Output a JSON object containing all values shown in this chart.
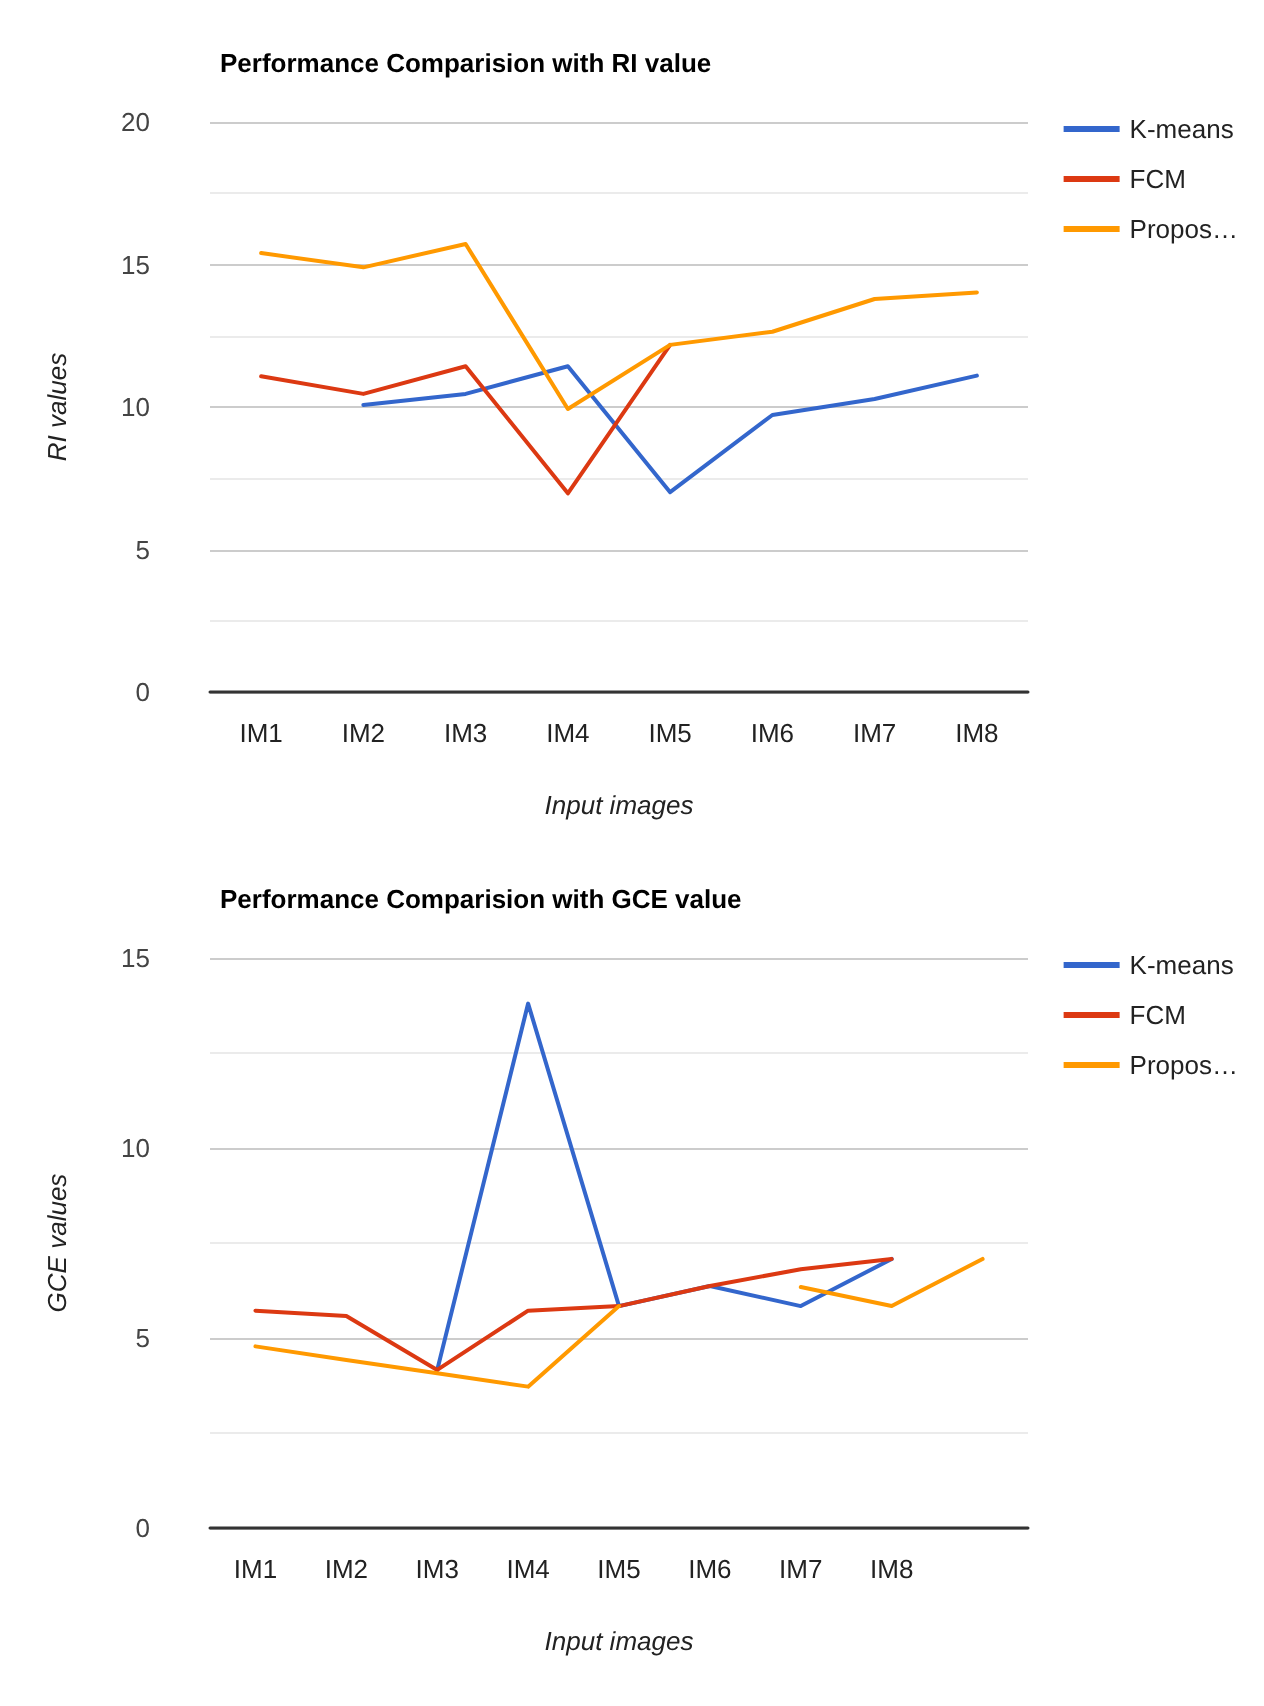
{
  "chart_data": [
    {
      "type": "line",
      "title": "Performance Comparision with RI value",
      "xlabel": "Input images",
      "ylabel": "RI values",
      "categories": [
        "IM1",
        "IM2",
        "IM3",
        "IM4",
        "IM5",
        "IM6",
        "IM7",
        "IM8"
      ],
      "ylim": [
        0,
        20
      ],
      "yticks": [
        0,
        5,
        10,
        15,
        20
      ],
      "grid": "y",
      "legend": "top right",
      "series": [
        {
          "name": "K-means",
          "color": "#3366cc",
          "values": [
            null,
            10.07,
            10.46,
            11.43,
            7.01,
            9.72,
            10.28,
            11.1
          ]
        },
        {
          "name": "FCM",
          "color": "#dc3912",
          "values": [
            11.08,
            10.46,
            11.43,
            6.97,
            12.18,
            null,
            null,
            null
          ]
        },
        {
          "name": "Propos…",
          "color": "#ff9900",
          "values": [
            15.4,
            14.9,
            15.72,
            9.93,
            12.18,
            12.64,
            13.79,
            14.02
          ]
        }
      ]
    },
    {
      "type": "line",
      "title": "Performance Comparision with GCE value",
      "xlabel": "Input images",
      "ylabel": "GCE values",
      "categories": [
        "IM1",
        "IM2",
        "IM3",
        "IM4",
        "IM5",
        "IM6",
        "IM7",
        "IM8",
        null
      ],
      "ylim": [
        0,
        15
      ],
      "yticks": [
        0,
        5,
        10,
        15
      ],
      "grid": "y",
      "legend": "top right",
      "series": [
        {
          "name": "K-means",
          "color": "#3366cc",
          "values": [
            null,
            null,
            4.16,
            13.8,
            5.84,
            6.37,
            5.84,
            7.08,
            null
          ]
        },
        {
          "name": "FCM",
          "color": "#dc3912",
          "values": [
            5.72,
            5.58,
            4.16,
            5.72,
            5.84,
            6.37,
            6.81,
            7.08,
            null
          ]
        },
        {
          "name": "Propos…",
          "color": "#ff9900",
          "values": [
            4.78,
            4.42,
            4.07,
            3.72,
            5.84,
            null,
            6.34,
            5.84,
            7.08
          ]
        }
      ]
    }
  ]
}
